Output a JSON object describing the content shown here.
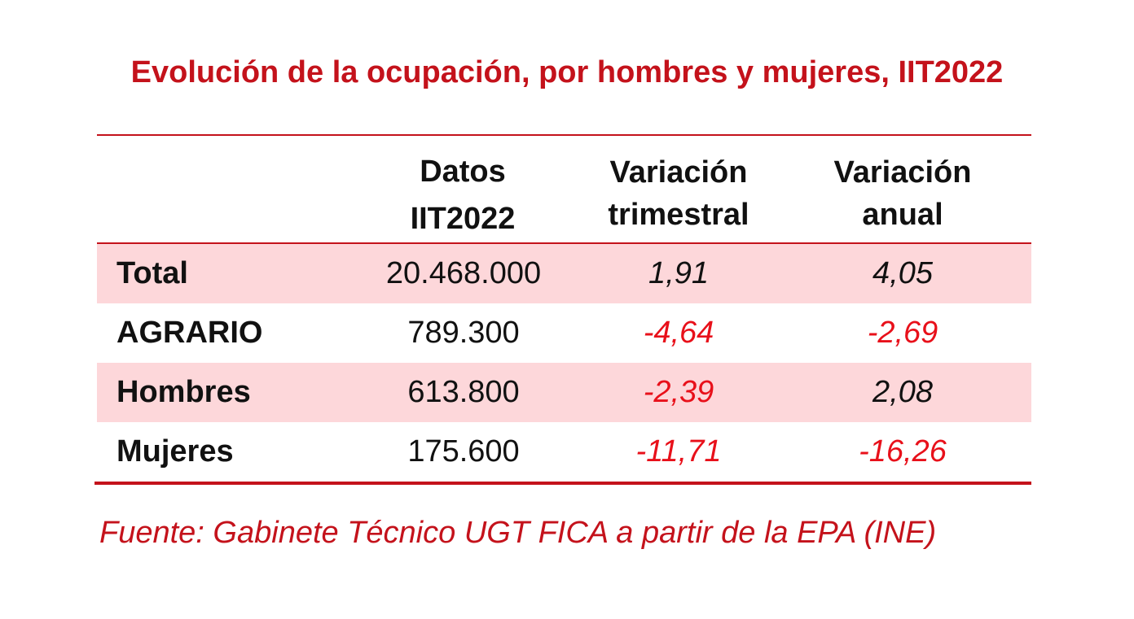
{
  "title": "Evolución de la ocupación, por hombres y mujeres, IIT2022",
  "source": "Fuente: Gabinete Técnico UGT FICA a partir de la EPA (INE)",
  "colors": {
    "accent": "#c4121b",
    "negative": "#e8101a",
    "row_shade": "#fdd7da",
    "text": "#111111"
  },
  "chart_data": {
    "type": "table",
    "title": "Evolución de la ocupación, por hombres y mujeres, IIT2022",
    "columns": [
      {
        "line1": "Datos",
        "line2": "IIT2022"
      },
      {
        "line1": "Variación",
        "line2": "trimestral"
      },
      {
        "line1": "Variación",
        "line2": "anual"
      }
    ],
    "rows": [
      {
        "label": "Total",
        "datos": "20.468.000",
        "trimestral": "1,91",
        "anual": "4,05",
        "shaded": true
      },
      {
        "label": "AGRARIO",
        "datos": "789.300",
        "trimestral": "-4,64",
        "anual": "-2,69",
        "shaded": false
      },
      {
        "label": "Hombres",
        "datos": "613.800",
        "trimestral": "-2,39",
        "anual": "2,08",
        "shaded": true
      },
      {
        "label": "Mujeres",
        "datos": "175.600",
        "trimestral": "-11,71",
        "anual": "-16,26",
        "shaded": false
      }
    ]
  }
}
